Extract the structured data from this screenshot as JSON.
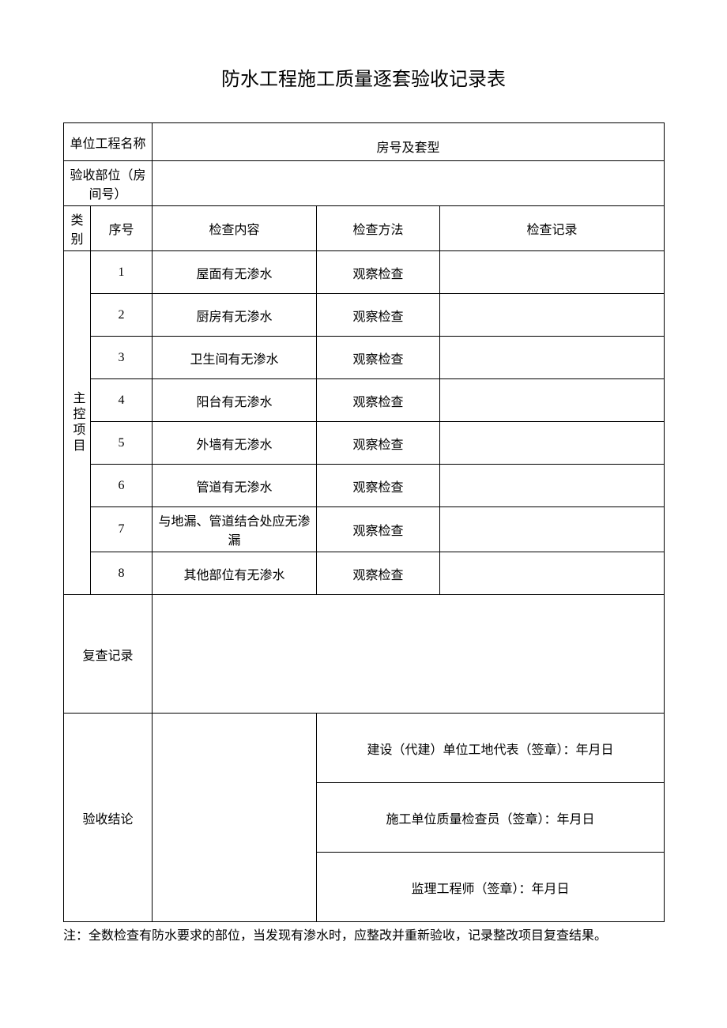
{
  "title": "防水工程施工质量逐套验收记录表",
  "header": {
    "projectNameLabel": "单位工程名称",
    "houseLabel": "房号及套型",
    "inspectionPartLabel": "验收部位（房间号）"
  },
  "columns": {
    "category": "类别",
    "seq": "序号",
    "content": "检查内容",
    "method": "检查方法",
    "record": "检查记录"
  },
  "categoryLabel": "主控项目",
  "items": [
    {
      "seq": "1",
      "content": "屋面有无渗水",
      "method": "观察检查",
      "record": ""
    },
    {
      "seq": "2",
      "content": "厨房有无渗水",
      "method": "观察检查",
      "record": ""
    },
    {
      "seq": "3",
      "content": "卫生间有无渗水",
      "method": "观察检查",
      "record": ""
    },
    {
      "seq": "4",
      "content": "阳台有无渗水",
      "method": "观察检查",
      "record": ""
    },
    {
      "seq": "5",
      "content": "外墙有无渗水",
      "method": "观察检查",
      "record": ""
    },
    {
      "seq": "6",
      "content": "管道有无渗水",
      "method": "观察检查",
      "record": ""
    },
    {
      "seq": "7",
      "content": "与地漏、管道结合处应无渗漏",
      "method": "观察检查",
      "record": ""
    },
    {
      "seq": "8",
      "content": "其他部位有无渗水",
      "method": "观察检查",
      "record": ""
    }
  ],
  "recheckLabel": "复查记录",
  "conclusionLabel": "验收结论",
  "signatures": {
    "owner": "建设（代建）单位工地代表（签章）：年月日",
    "contractor": "施工单位质量检查员（签章）：年月日",
    "supervisor": "监理工程师（签章）：年月日"
  },
  "note": "注：全数检查有防水要求的部位，当发现有渗水时，应整改并重新验收，记录整改项目复查结果。",
  "colWidths": {
    "c1": "34",
    "c2": "44",
    "c3": "34",
    "c4": "52",
    "c5": "156",
    "c6": "156",
    "c7": "284"
  }
}
